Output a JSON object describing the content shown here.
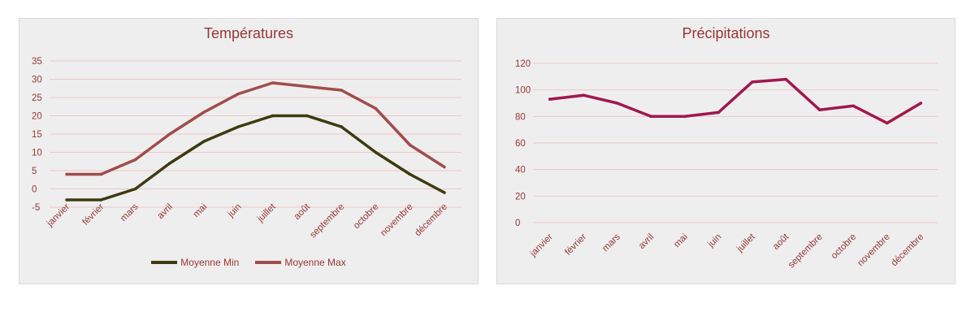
{
  "chart_data": [
    {
      "type": "line",
      "title": "Températures",
      "categories": [
        "janvier",
        "février",
        "mars",
        "avril",
        "mai",
        "juin",
        "juillet",
        "août",
        "septembre",
        "octobre",
        "novembre",
        "décembre"
      ],
      "ylim": [
        -5,
        35
      ],
      "yticks": [
        -5,
        0,
        5,
        10,
        15,
        20,
        25,
        30,
        35
      ],
      "grid": true,
      "legend_position": "bottom",
      "series": [
        {
          "name": "Moyenne Min",
          "color": "#3d3a10",
          "values": [
            -3,
            -3,
            0,
            7,
            13,
            17,
            20,
            20,
            17,
            10,
            4,
            -1
          ]
        },
        {
          "name": "Moyenne Max",
          "color": "#a04c4c",
          "values": [
            4,
            4,
            8,
            15,
            21,
            26,
            29,
            28,
            27,
            22,
            12,
            6
          ]
        }
      ]
    },
    {
      "type": "line",
      "title": "Précipitations",
      "categories": [
        "janvier",
        "février",
        "mars",
        "avril",
        "mai",
        "juin",
        "juillet",
        "août",
        "septembre",
        "octobre",
        "novembre",
        "décembre"
      ],
      "ylim": [
        0,
        120
      ],
      "yticks": [
        0,
        20,
        40,
        60,
        80,
        100,
        120
      ],
      "grid": true,
      "series": [
        {
          "color": "#a0184e",
          "values": [
            93,
            96,
            90,
            80,
            80,
            83,
            106,
            108,
            85,
            88,
            75,
            90
          ]
        }
      ]
    }
  ]
}
